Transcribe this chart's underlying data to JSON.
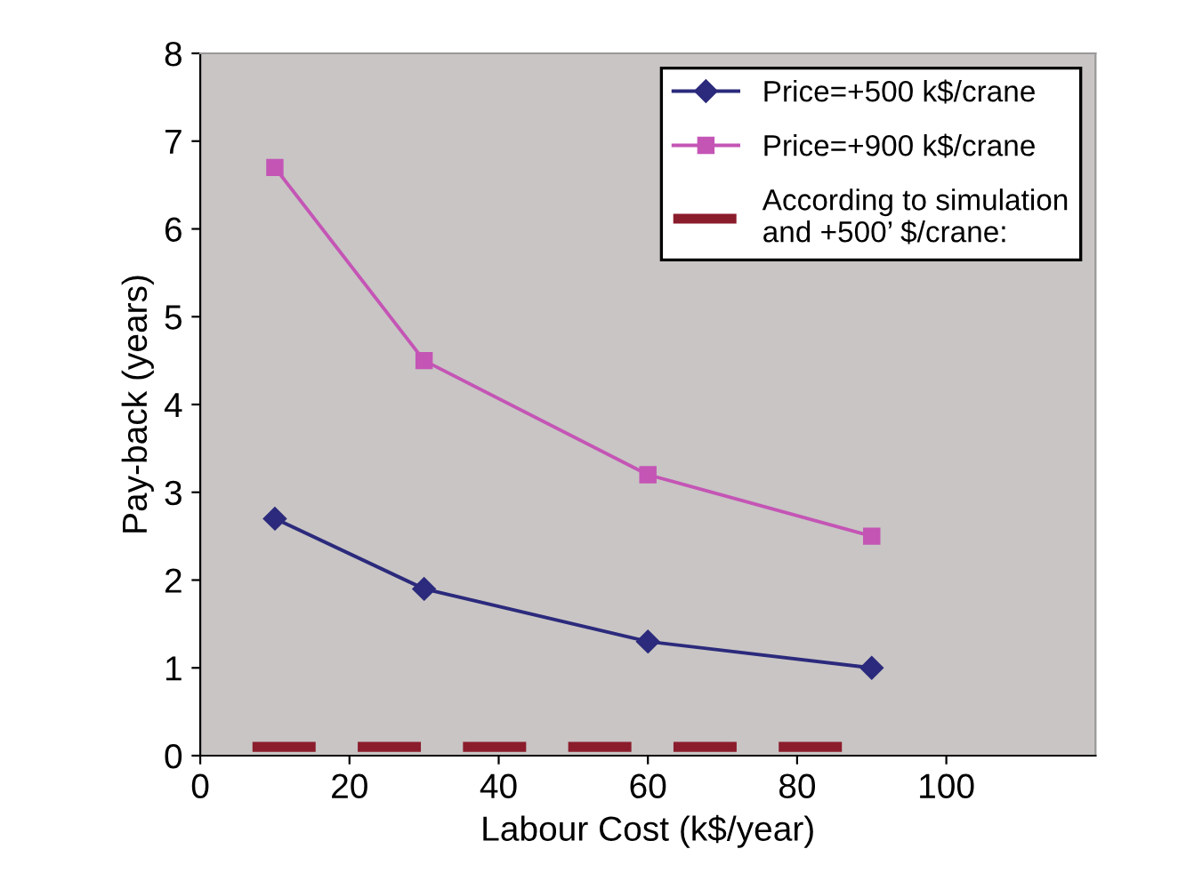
{
  "chart_data": {
    "type": "line",
    "xlabel": "Labour Cost (k$/year)",
    "ylabel": "Pay-back (years)",
    "xlim": [
      0,
      120
    ],
    "xticks": [
      0,
      20,
      40,
      60,
      80,
      100
    ],
    "ylim": [
      0,
      8
    ],
    "yticks": [
      0,
      1,
      2,
      3,
      4,
      5,
      6,
      7,
      8
    ],
    "grid": false,
    "legend": "top right",
    "series": [
      {
        "name": "Price=+500 k$/crane",
        "color": "#2b2a7c",
        "marker": "diamond",
        "line_style": "solid",
        "x": [
          10,
          30,
          60,
          90
        ],
        "values": [
          2.7,
          1.9,
          1.3,
          1.0
        ]
      },
      {
        "name": "Price=+900 k$/crane",
        "color": "#c455b5",
        "marker": "square",
        "line_style": "solid",
        "x": [
          10,
          30,
          60,
          90
        ],
        "values": [
          6.7,
          4.5,
          3.2,
          2.5
        ]
      },
      {
        "name": "According to simulation\nand +500’ $/crane:",
        "color": "#8b1c2c",
        "marker": "none",
        "line_style": "dashed",
        "x": [
          7,
          86
        ],
        "values": [
          0.1,
          0.1
        ]
      }
    ]
  }
}
